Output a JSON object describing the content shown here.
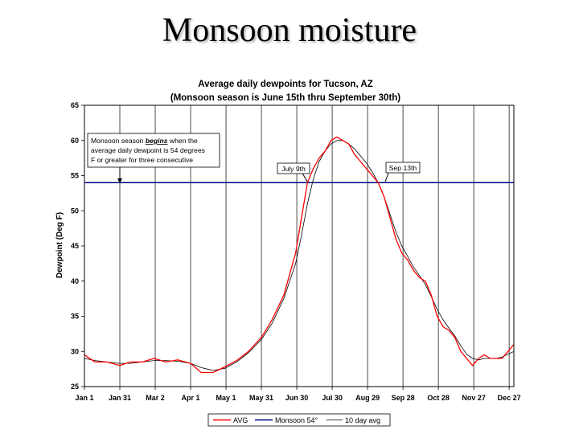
{
  "slide": {
    "title": "Monsoon moisture"
  },
  "chart_data": {
    "type": "line",
    "title": "Average daily dewpoints for Tucson, AZ",
    "subtitle": "(Monsoon season is June 15th thru September 30th)",
    "xlabel": "",
    "ylabel": "Dewpoint (Deg F)",
    "xlim": [
      1,
      365
    ],
    "ylim": [
      25,
      65
    ],
    "y_ticks": [
      25,
      30,
      35,
      40,
      45,
      50,
      55,
      60,
      65
    ],
    "x_ticks": [
      {
        "day": 1,
        "label": "Jan 1"
      },
      {
        "day": 31,
        "label": "Jan 31"
      },
      {
        "day": 61,
        "label": "Mar 2"
      },
      {
        "day": 91,
        "label": "Apr 1"
      },
      {
        "day": 121,
        "label": "May 1"
      },
      {
        "day": 151,
        "label": "May 31"
      },
      {
        "day": 181,
        "label": "Jun 30"
      },
      {
        "day": 211,
        "label": "Jul 30"
      },
      {
        "day": 241,
        "label": "Aug 29"
      },
      {
        "day": 271,
        "label": "Sep 28"
      },
      {
        "day": 301,
        "label": "Oct 28"
      },
      {
        "day": 331,
        "label": "Nov 27"
      },
      {
        "day": 361,
        "label": "Dec 27"
      }
    ],
    "grid": "vertical lines at month ticks",
    "legend_position": "bottom",
    "series": [
      {
        "name": "AVG",
        "color": "#ff0000",
        "x": [
          1,
          10,
          20,
          31,
          40,
          50,
          60,
          70,
          80,
          91,
          100,
          110,
          120,
          130,
          140,
          151,
          160,
          170,
          180,
          185,
          190,
          195,
          200,
          205,
          210,
          215,
          220,
          225,
          230,
          235,
          240,
          245,
          250,
          255,
          260,
          265,
          270,
          275,
          280,
          285,
          290,
          295,
          300,
          305,
          310,
          315,
          320,
          325,
          330,
          335,
          340,
          345,
          350,
          355,
          360,
          365
        ],
        "y": [
          29.5,
          28.5,
          28.5,
          28,
          28.5,
          28.5,
          29,
          28.5,
          28.8,
          28.3,
          27,
          27,
          27.8,
          28.7,
          30,
          32,
          34.5,
          38,
          44,
          49,
          54,
          56,
          57.5,
          58.5,
          60,
          60.5,
          60,
          59.5,
          58,
          57,
          56,
          55,
          54,
          52,
          49,
          46,
          44,
          43,
          41.5,
          40.5,
          40,
          38,
          35,
          33.5,
          33,
          32,
          30,
          29,
          28,
          29,
          29.5,
          29,
          29,
          29,
          30,
          31
        ]
      },
      {
        "name": "Monsoon 54°",
        "color": "#000080",
        "x": [
          1,
          365
        ],
        "y": [
          54,
          54
        ]
      },
      {
        "name": "10 day avg",
        "color": "#000000",
        "x": [
          1,
          10,
          20,
          31,
          40,
          50,
          60,
          70,
          80,
          91,
          100,
          110,
          120,
          130,
          140,
          151,
          160,
          170,
          180,
          185,
          190,
          195,
          200,
          205,
          210,
          215,
          220,
          225,
          230,
          235,
          240,
          245,
          250,
          255,
          260,
          265,
          270,
          275,
          280,
          285,
          290,
          295,
          300,
          305,
          310,
          315,
          320,
          325,
          330,
          335,
          340,
          345,
          350,
          355,
          360,
          365
        ],
        "y": [
          29,
          28.7,
          28.5,
          28.3,
          28.3,
          28.5,
          28.7,
          28.7,
          28.6,
          28.3,
          27.7,
          27.3,
          27.6,
          28.5,
          29.8,
          31.7,
          34,
          37.5,
          42.5,
          46.5,
          51,
          54.5,
          57,
          58.5,
          59.5,
          60,
          60,
          59.5,
          58.8,
          57.8,
          56.8,
          55.5,
          54,
          52,
          49.5,
          47,
          45,
          43.5,
          42,
          40.8,
          39.5,
          37.8,
          36,
          34.5,
          33.3,
          32.2,
          30.8,
          29.6,
          29,
          28.8,
          29,
          29,
          29,
          29.2,
          29.6,
          30
        ]
      }
    ],
    "annotations": {
      "begin_note": [
        "Monsoon season ",
        "begins",
        " when the",
        "average daily dewpoint is 54 degrees",
        "F or greater for three consecutive"
      ],
      "begin_note_arrow_day": 31,
      "start_label": "July 9th",
      "start_day": 190,
      "end_label": "Sep 13th",
      "end_day": 256
    },
    "legend": [
      "AVG",
      "Monsoon 54°",
      "10 day avg"
    ]
  }
}
